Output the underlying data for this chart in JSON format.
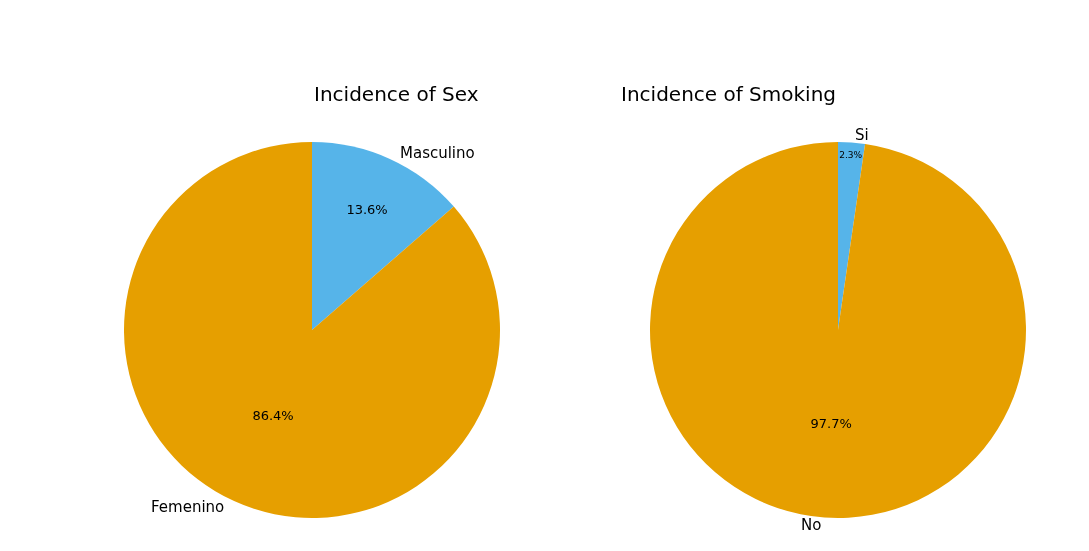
{
  "chart_data": [
    {
      "type": "pie",
      "title": "Incidence of Sex",
      "categories": [
        "Masculino",
        "Femenino"
      ],
      "values": [
        13.6,
        86.4
      ],
      "value_labels": [
        "13.6%",
        "86.4%"
      ],
      "colors": [
        "#56b4e9",
        "#e69f00"
      ]
    },
    {
      "type": "pie",
      "title": "Incidence of Smoking",
      "categories": [
        "Si",
        "No"
      ],
      "values": [
        2.3,
        97.7
      ],
      "value_labels": [
        "2.3%",
        "97.7%"
      ],
      "colors": [
        "#56b4e9",
        "#e69f00"
      ]
    }
  ]
}
